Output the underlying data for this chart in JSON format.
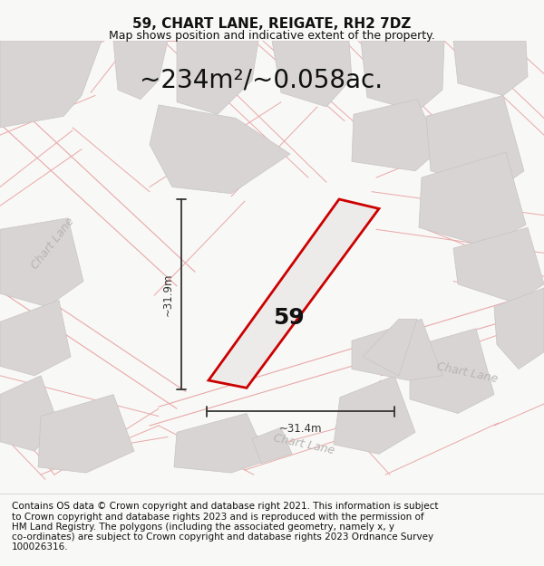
{
  "title": "59, CHART LANE, REIGATE, RH2 7DZ",
  "subtitle": "Map shows position and indicative extent of the property.",
  "area_text": "~234m²/~0.058ac.",
  "dim_vertical": "~31.9m",
  "dim_horizontal": "~31.4m",
  "property_number": "59",
  "footer_lines": [
    "Contains OS data © Crown copyright and database right 2021. This information is subject",
    "to Crown copyright and database rights 2023 and is reproduced with the permission of",
    "HM Land Registry. The polygons (including the associated geometry, namely x, y",
    "co-ordinates) are subject to Crown copyright and database rights 2023 Ordnance Survey",
    "100026316."
  ],
  "map_bg": "#f0eeed",
  "road_outline_color": "#e8a8a8",
  "building_fill": "#d8d4d4",
  "building_edge": "#c8c4c4",
  "property_outline_color": "#cc0000",
  "property_fill": "#edeaea",
  "dim_color": "#333333",
  "road_label_color": "#b8b4b4",
  "title_fontsize": 11,
  "subtitle_fontsize": 9,
  "area_fontsize": 20,
  "footer_fontsize": 7.5,
  "number_fontsize": 18
}
